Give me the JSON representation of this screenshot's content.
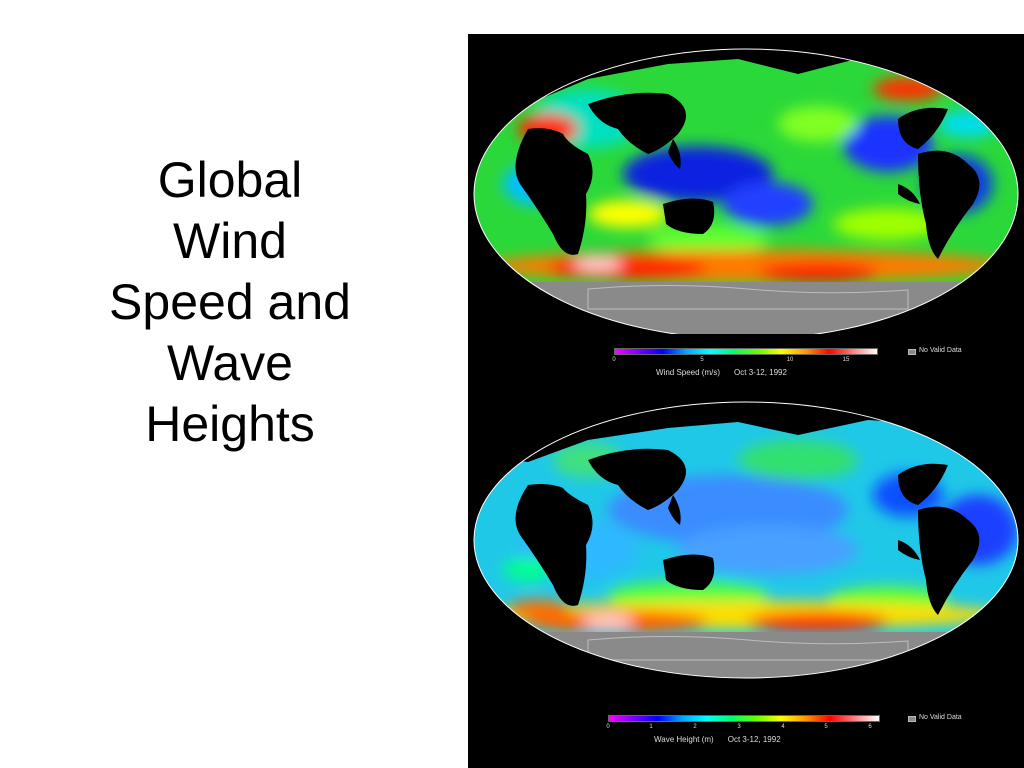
{
  "title": {
    "lines": [
      "Global",
      "Wind",
      "Speed and",
      "Wave",
      "Heights"
    ]
  },
  "maps": [
    {
      "caption_variable": "Wind Speed  (m/s)",
      "caption_date": "Oct 3-12, 1992",
      "ticks": [
        "0",
        "5",
        "10",
        "15"
      ],
      "no_data_label": "No Valid Data"
    },
    {
      "caption_variable": "Wave Height  (m)",
      "caption_date": "Oct 3-12, 1992",
      "ticks": [
        "0",
        "1",
        "2",
        "3",
        "4",
        "5",
        "6"
      ],
      "no_data_label": "No Valid Data"
    }
  ],
  "colors": {
    "background": "#000000",
    "land": "#000000",
    "no_data": "#8a8a8a",
    "colorbar": [
      "#ff00ff",
      "#7a00ff",
      "#0000ff",
      "#00aaff",
      "#00ffff",
      "#00ff66",
      "#66ff00",
      "#ffff00",
      "#ff9900",
      "#ff0000",
      "#ff8080",
      "#ffffff"
    ]
  }
}
